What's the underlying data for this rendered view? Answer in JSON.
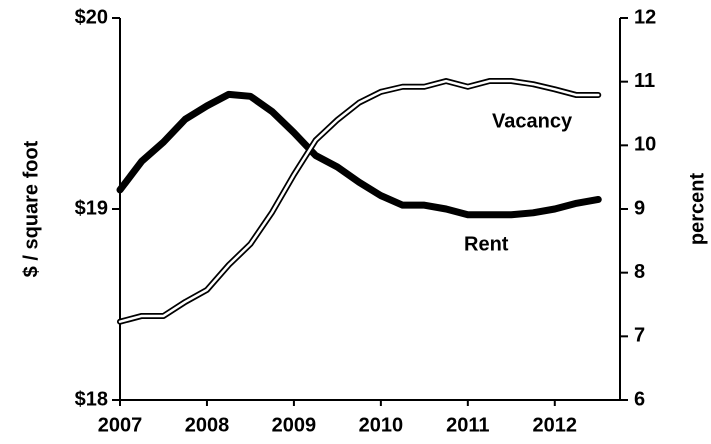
{
  "chart_data": {
    "type": "line",
    "y_label": "$ / square foot",
    "y2_label": "percent",
    "annotations": [
      "Vacancy",
      "Rent"
    ],
    "x": [
      2007,
      2007.25,
      2007.5,
      2007.75,
      2008,
      2008.25,
      2008.5,
      2008.75,
      2009,
      2009.25,
      2009.5,
      2009.75,
      2010,
      2010.25,
      2010.5,
      2010.75,
      2011,
      2011.25,
      2011.5,
      2011.75,
      2012,
      2012.25,
      2012.5
    ],
    "series": [
      {
        "name": "Rent",
        "color": "#000000",
        "values": [
          19.1,
          19.25,
          19.35,
          19.47,
          19.54,
          19.6,
          19.59,
          19.51,
          19.4,
          19.28,
          19.22,
          19.14,
          19.07,
          19.02,
          19.02,
          19.0,
          18.97,
          18.97,
          18.97,
          18.98,
          19.0,
          19.03,
          19.05
        ]
      },
      {
        "name": "Vacancy",
        "color": "#ffffff",
        "axis": "y2",
        "values": [
          7.23,
          7.32,
          7.32,
          7.54,
          7.73,
          8.12,
          8.45,
          8.95,
          9.54,
          10.08,
          10.4,
          10.67,
          10.84,
          10.92,
          10.92,
          11.01,
          10.92,
          11.01,
          11.01,
          10.96,
          10.88,
          10.79,
          10.79
        ]
      }
    ],
    "xlim": [
      2007,
      2012.75
    ],
    "xticks": [
      2007,
      2008,
      2009,
      2010,
      2011,
      2012
    ],
    "ylim": [
      18,
      20
    ],
    "yticks": [
      {
        "value": 18,
        "label": "$18"
      },
      {
        "value": 19,
        "label": "$19"
      },
      {
        "value": 20,
        "label": "$20"
      }
    ],
    "y2lim": [
      6,
      12
    ],
    "y2ticks": [
      6,
      7,
      8,
      9,
      10,
      11,
      12
    ]
  }
}
